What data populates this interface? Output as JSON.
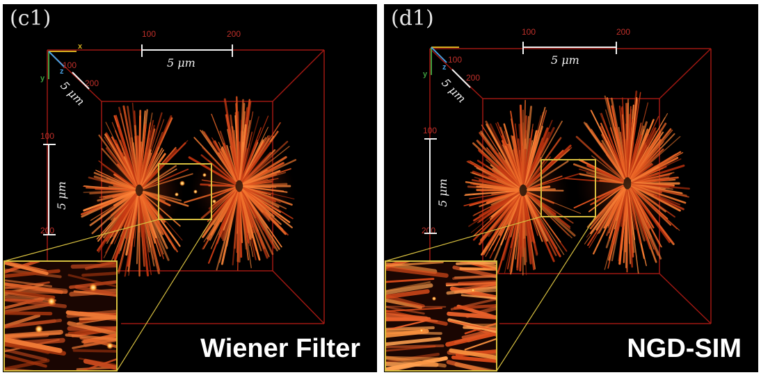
{
  "panels": [
    {
      "id": "c1",
      "panel_label": "(c1)",
      "method_label": "Wiener Filter",
      "tick_top_left": "100",
      "tick_top_right": "200",
      "scale_x": "5 μm",
      "scale_y": "5 μm",
      "scale_z": "5 μm",
      "tick_z_start": "100",
      "tick_z_end": "200",
      "tick_y_top": "100",
      "tick_y_bottom": "200",
      "axis_x": "x",
      "axis_y": "y",
      "axis_z": "z"
    },
    {
      "id": "d1",
      "panel_label": "(d1)",
      "method_label": "NGD-SIM",
      "tick_top_left": "100",
      "tick_top_right": "200",
      "scale_x": "5 μm",
      "scale_y": "5 μm",
      "scale_z": "5 μm",
      "tick_z_start": "100",
      "tick_z_end": "200",
      "tick_y_top": "100",
      "tick_y_bottom": "200",
      "axis_x": "x",
      "axis_y": "y",
      "axis_z": "z"
    }
  ],
  "colors": {
    "background": "#000000",
    "box_lines": "#a01812",
    "fiber": "#e0521e",
    "inset_border": "#d8c040",
    "text": "#ffffff"
  }
}
